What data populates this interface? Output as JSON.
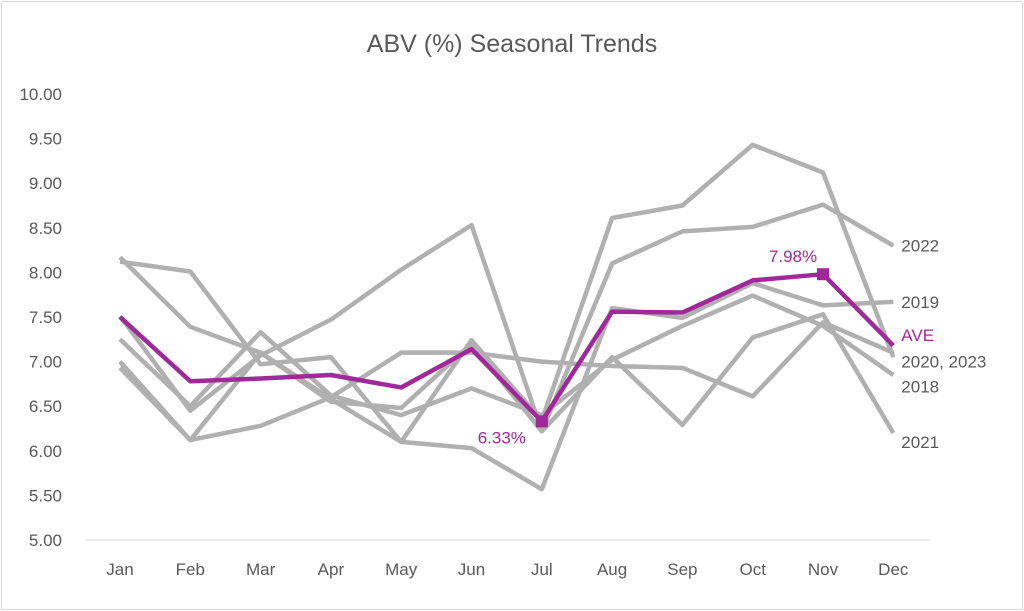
{
  "chart_data": {
    "type": "line",
    "title": "ABV (%) Seasonal Trends",
    "xlabel": "",
    "ylabel": "",
    "categories": [
      "Jan",
      "Feb",
      "Mar",
      "Apr",
      "May",
      "Jun",
      "Jul",
      "Aug",
      "Sep",
      "Oct",
      "Nov",
      "Dec"
    ],
    "ylim": [
      5.0,
      10.0
    ],
    "yticks": [
      "5.00",
      "5.50",
      "6.00",
      "6.50",
      "7.00",
      "7.50",
      "8.00",
      "8.50",
      "9.00",
      "9.50",
      "10.00"
    ],
    "grid": false,
    "colors": {
      "years": "#b0b0b0",
      "average": "#a0289a",
      "text": "#595959"
    },
    "series": [
      {
        "name": "2022",
        "label": "2022",
        "values": [
          7.51,
          6.45,
          7.07,
          7.47,
          8.03,
          8.53,
          6.22,
          8.1,
          8.46,
          8.51,
          8.76,
          8.3
        ]
      },
      {
        "name": "2020",
        "label": "",
        "values": [
          8.12,
          8.01,
          6.97,
          7.05,
          6.1,
          7.24,
          6.34,
          8.61,
          8.75,
          9.43,
          9.12,
          7.05
        ]
      },
      {
        "name": "2023",
        "label": "2020, 2023",
        "values": [
          7.0,
          6.12,
          6.28,
          6.6,
          7.1,
          7.1,
          7.0,
          6.95,
          6.93,
          6.61,
          7.44,
          7.1
        ]
      },
      {
        "name": "2019",
        "label": "2019",
        "values": [
          8.17,
          7.39,
          7.1,
          6.58,
          6.1,
          6.03,
          5.57,
          7.6,
          7.49,
          7.88,
          7.63,
          7.67
        ]
      },
      {
        "name": "2018",
        "label": "2018",
        "values": [
          7.25,
          6.5,
          7.33,
          6.62,
          6.4,
          6.7,
          6.4,
          7.02,
          7.4,
          7.74,
          7.4,
          6.85
        ]
      },
      {
        "name": "2021",
        "label": "2021",
        "values": [
          6.93,
          6.12,
          7.1,
          6.55,
          6.48,
          7.2,
          6.22,
          7.05,
          6.29,
          7.27,
          7.53,
          6.2
        ]
      }
    ],
    "average": {
      "name": "AVE",
      "label": "AVE",
      "values": [
        7.5,
        6.78,
        6.81,
        6.85,
        6.71,
        7.14,
        6.33,
        7.56,
        7.55,
        7.91,
        7.98,
        7.18
      ]
    },
    "annotations": [
      {
        "month": "Jul",
        "value": 6.33,
        "text": "6.33%"
      },
      {
        "month": "Nov",
        "value": 7.98,
        "text": "7.98%"
      }
    ]
  }
}
